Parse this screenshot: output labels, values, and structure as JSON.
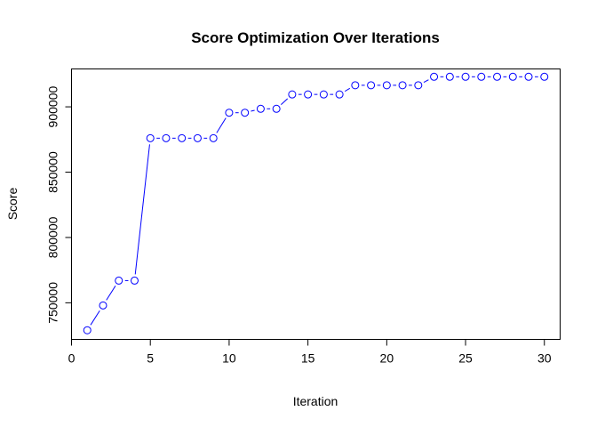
{
  "chart_data": {
    "type": "line",
    "title": "Score Optimization Over Iterations",
    "xlabel": "Iteration",
    "ylabel": "Score",
    "xlim": [
      0,
      31
    ],
    "ylim": [
      722000,
      929000
    ],
    "x_ticks": [
      0,
      5,
      10,
      15,
      20,
      25,
      30
    ],
    "y_ticks": [
      750000,
      800000,
      850000,
      900000
    ],
    "grid": false,
    "legend": "none",
    "series_color": "#0000ff",
    "marker": "open-circle",
    "line_style": "segments-between-points",
    "series": [
      {
        "x": [
          1,
          2,
          3,
          4,
          5,
          6,
          7,
          8,
          9,
          10,
          11,
          12,
          13,
          14,
          15,
          16,
          17,
          18,
          19,
          20,
          21,
          22,
          23,
          24,
          25,
          26,
          27,
          28,
          29,
          30
        ],
        "values": [
          729000,
          748000,
          767000,
          767000,
          876000,
          876000,
          876000,
          876000,
          876000,
          895500,
          895500,
          898500,
          898500,
          909500,
          909500,
          909500,
          909500,
          916500,
          916500,
          916500,
          916500,
          916500,
          923000,
          923000,
          923000,
          923000,
          923000,
          923000,
          923000,
          923000
        ]
      }
    ]
  }
}
